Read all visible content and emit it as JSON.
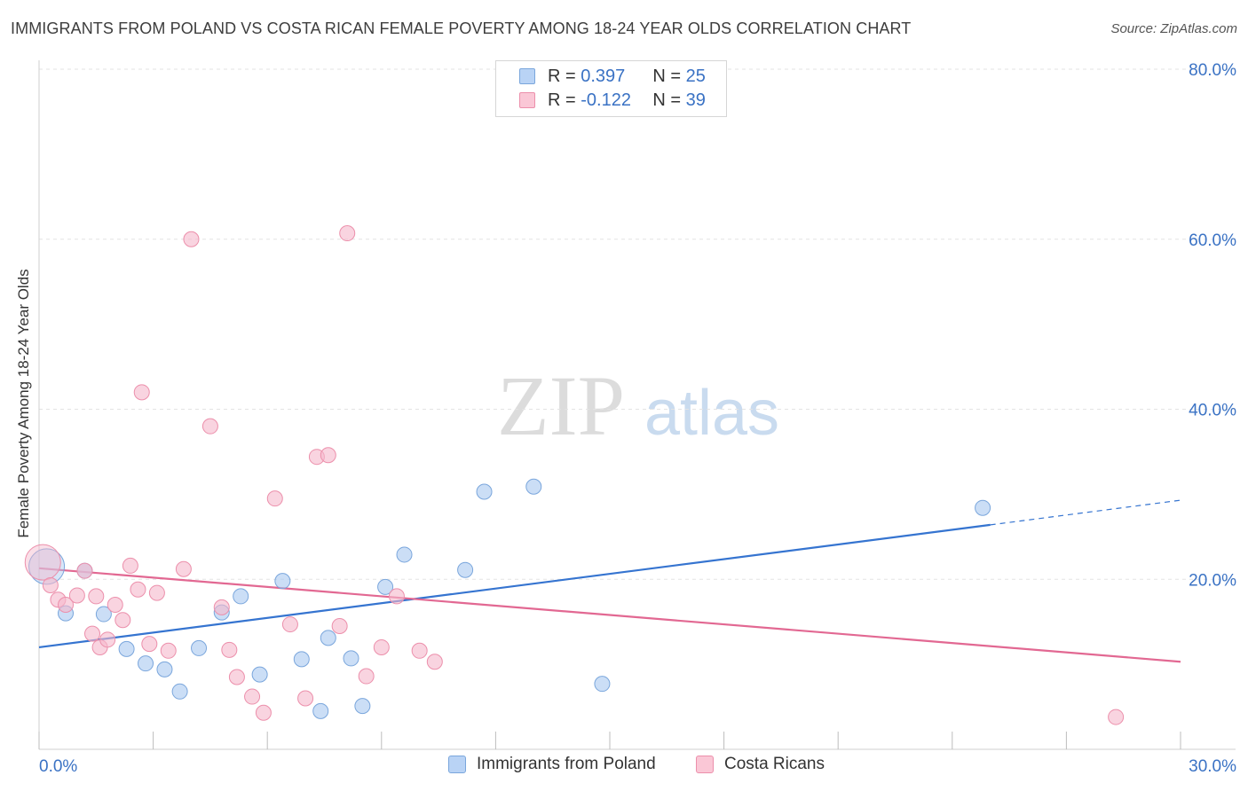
{
  "title": "IMMIGRANTS FROM POLAND VS COSTA RICAN FEMALE POVERTY AMONG 18-24 YEAR OLDS CORRELATION CHART",
  "source": "Source: ZipAtlas.com",
  "watermark": {
    "zip": "ZIP",
    "atlas": "atlas"
  },
  "legend_stats": [
    {
      "r_label": "R =",
      "r_value": "0.397",
      "n_label": "N =",
      "n_value": "25",
      "color": "#a8c8f0"
    },
    {
      "r_label": "R =",
      "r_value": "-0.122",
      "n_label": "N =",
      "n_value": "39",
      "color": "#f5b8cb"
    }
  ],
  "chart_data": {
    "type": "scatter",
    "title": "IMMIGRANTS FROM POLAND VS COSTA RICAN FEMALE POVERTY AMONG 18-24 YEAR OLDS CORRELATION CHART",
    "xlabel": "",
    "ylabel": "Female Poverty Among 18-24 Year Olds",
    "xlim": [
      0,
      30
    ],
    "ylim": [
      0,
      80
    ],
    "x_tick_labels": [
      "0.0%",
      "30.0%"
    ],
    "y_tick_values": [
      20,
      40,
      60,
      80
    ],
    "y_tick_labels": [
      "20.0%",
      "40.0%",
      "60.0%",
      "80.0%"
    ],
    "grid": true,
    "legend_position": "bottom",
    "series": [
      {
        "name": "Immigrants from Poland",
        "color": "#a8c8f0",
        "edge": "#7aa6dc",
        "line_color": "#3574d0",
        "trend": {
          "x": [
            0,
            25
          ],
          "y": [
            12.0,
            26.4
          ],
          "dashed_to_x": 30,
          "dashed_to_y": 29.3
        },
        "points": [
          {
            "x": 0.2,
            "y": 21.5,
            "big": true
          },
          {
            "x": 0.7,
            "y": 16.0
          },
          {
            "x": 1.2,
            "y": 21.0
          },
          {
            "x": 1.7,
            "y": 15.9
          },
          {
            "x": 2.3,
            "y": 11.8
          },
          {
            "x": 2.8,
            "y": 10.1
          },
          {
            "x": 3.3,
            "y": 9.4
          },
          {
            "x": 3.7,
            "y": 6.8
          },
          {
            "x": 4.2,
            "y": 11.9
          },
          {
            "x": 4.8,
            "y": 16.1
          },
          {
            "x": 5.3,
            "y": 18.0
          },
          {
            "x": 5.8,
            "y": 8.8
          },
          {
            "x": 6.4,
            "y": 19.8
          },
          {
            "x": 6.9,
            "y": 10.6
          },
          {
            "x": 7.4,
            "y": 4.5
          },
          {
            "x": 7.6,
            "y": 13.1
          },
          {
            "x": 8.2,
            "y": 10.7
          },
          {
            "x": 8.5,
            "y": 5.1
          },
          {
            "x": 9.1,
            "y": 19.1
          },
          {
            "x": 9.6,
            "y": 22.9
          },
          {
            "x": 11.2,
            "y": 21.1
          },
          {
            "x": 11.7,
            "y": 30.3
          },
          {
            "x": 13.0,
            "y": 30.9
          },
          {
            "x": 14.8,
            "y": 7.7
          },
          {
            "x": 24.8,
            "y": 28.4
          }
        ]
      },
      {
        "name": "Costa Ricans",
        "color": "#f5b8cb",
        "edge": "#ec8fab",
        "line_color": "#e26892",
        "trend": {
          "x": [
            0,
            30
          ],
          "y": [
            21.3,
            10.3
          ]
        },
        "points": [
          {
            "x": 0.1,
            "y": 22.0,
            "big": true
          },
          {
            "x": 0.3,
            "y": 19.3
          },
          {
            "x": 0.5,
            "y": 17.6
          },
          {
            "x": 0.7,
            "y": 17.0
          },
          {
            "x": 1.0,
            "y": 18.1
          },
          {
            "x": 1.2,
            "y": 21.0
          },
          {
            "x": 1.4,
            "y": 13.6
          },
          {
            "x": 1.5,
            "y": 18.0
          },
          {
            "x": 1.6,
            "y": 12.0
          },
          {
            "x": 1.8,
            "y": 12.9
          },
          {
            "x": 2.0,
            "y": 17.0
          },
          {
            "x": 2.2,
            "y": 15.2
          },
          {
            "x": 2.4,
            "y": 21.6
          },
          {
            "x": 2.6,
            "y": 18.8
          },
          {
            "x": 2.7,
            "y": 42.0
          },
          {
            "x": 2.9,
            "y": 12.4
          },
          {
            "x": 3.1,
            "y": 18.4
          },
          {
            "x": 3.4,
            "y": 11.6
          },
          {
            "x": 3.8,
            "y": 21.2
          },
          {
            "x": 4.0,
            "y": 60.0
          },
          {
            "x": 4.5,
            "y": 38.0
          },
          {
            "x": 4.8,
            "y": 16.7
          },
          {
            "x": 5.0,
            "y": 11.7
          },
          {
            "x": 5.2,
            "y": 8.5
          },
          {
            "x": 5.6,
            "y": 6.2
          },
          {
            "x": 5.9,
            "y": 4.3
          },
          {
            "x": 6.2,
            "y": 29.5
          },
          {
            "x": 6.6,
            "y": 14.7
          },
          {
            "x": 7.0,
            "y": 6.0
          },
          {
            "x": 7.3,
            "y": 34.4
          },
          {
            "x": 7.6,
            "y": 34.6
          },
          {
            "x": 7.9,
            "y": 14.5
          },
          {
            "x": 8.1,
            "y": 60.7
          },
          {
            "x": 8.6,
            "y": 8.6
          },
          {
            "x": 9.0,
            "y": 12.0
          },
          {
            "x": 9.4,
            "y": 18.0
          },
          {
            "x": 10.0,
            "y": 11.6
          },
          {
            "x": 10.4,
            "y": 10.3
          },
          {
            "x": 28.3,
            "y": 3.8
          }
        ]
      }
    ]
  }
}
